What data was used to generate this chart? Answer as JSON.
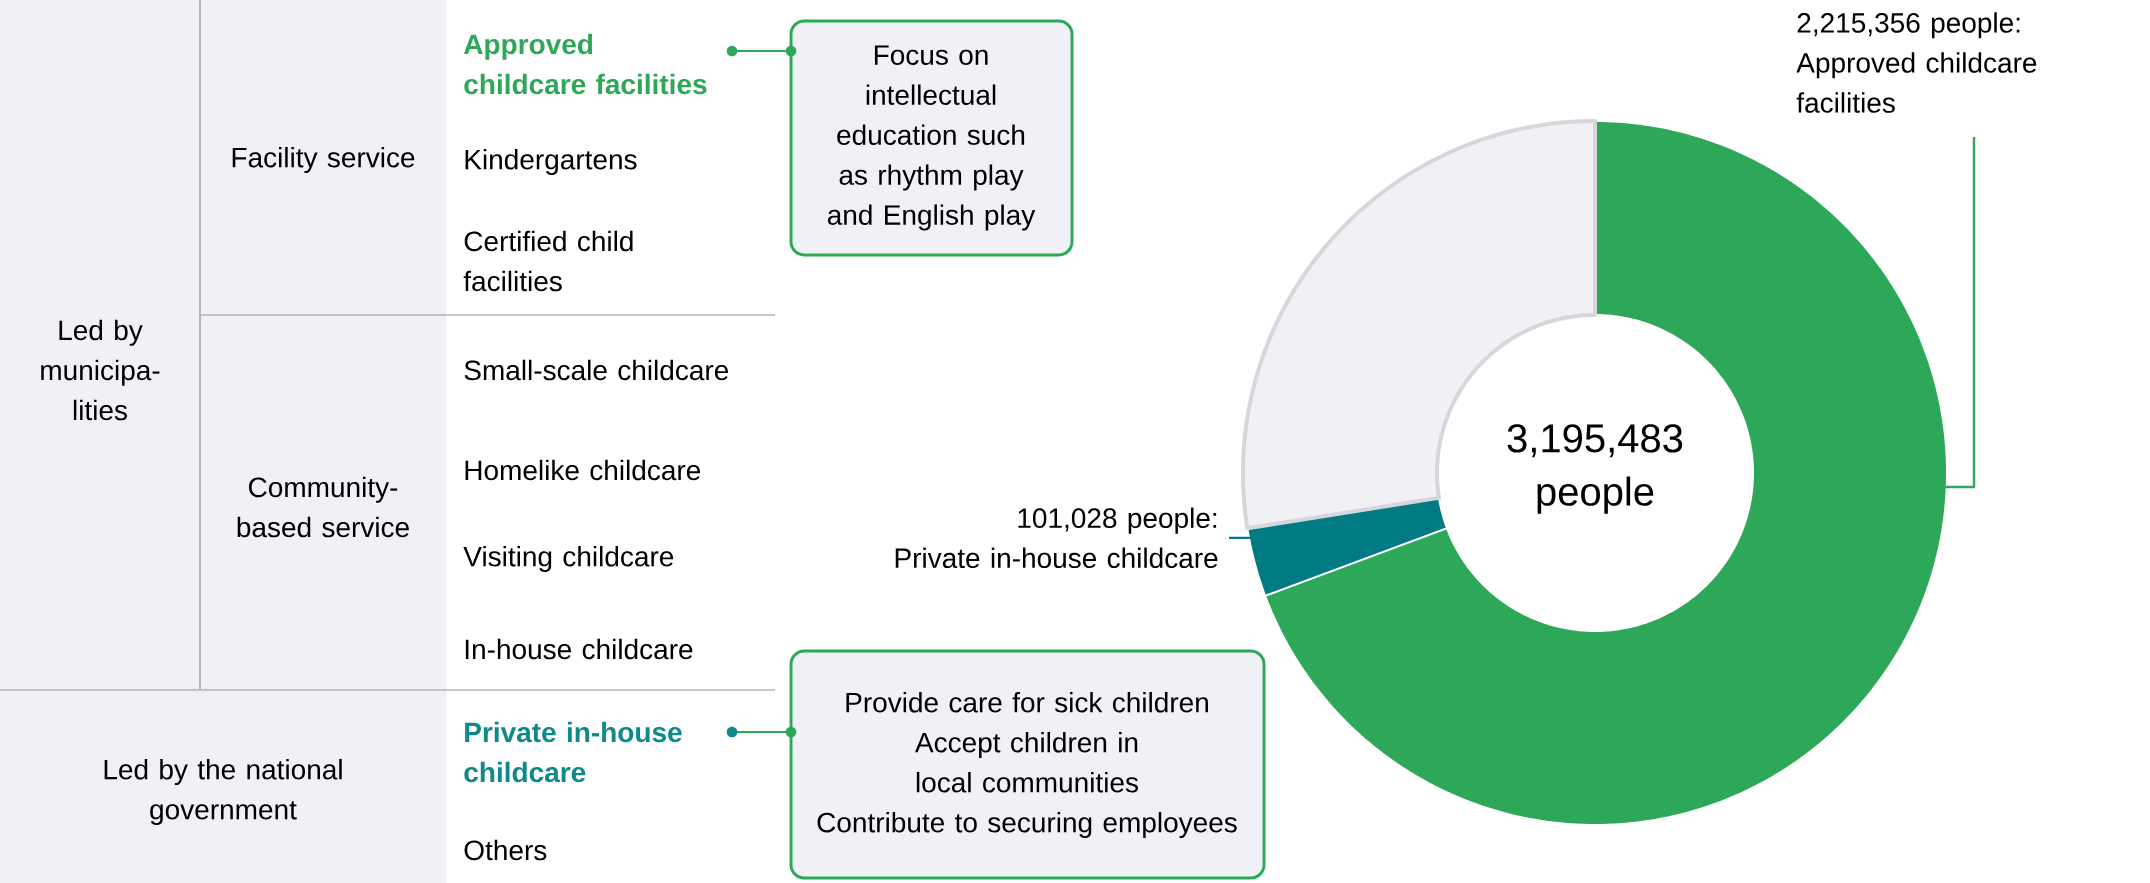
{
  "chart_data": [
    {
      "type": "other",
      "annotations": [
        "Led by municipa-lities",
        "Facility service",
        "Approved childcare facilities",
        "Kindergartens",
        "Certified child facilities",
        "Community-based service",
        "Small-scale childcare",
        "Homelike childcare",
        "Visiting childcare",
        "In-house childcare",
        "Led by the national government",
        "Private in-house childcare",
        "Others",
        "Focus on intellectual education such as rhythm play and English play",
        "Provide care for sick children",
        "Accept children in local communities",
        "Contribute to securing employees"
      ]
    },
    {
      "type": "donut",
      "categories": [
        "Approved childcare facilities",
        "Private in-house childcare",
        null
      ],
      "values": [
        2215356,
        101028,
        879099
      ],
      "colors": [
        "#2ca858",
        "#007b84",
        "#f0f0f5"
      ],
      "value_labels": [
        "2,215,356 people:",
        "101,028 people:",
        null
      ],
      "annotations": [
        "3,195,483 people"
      ]
    }
  ]
}
